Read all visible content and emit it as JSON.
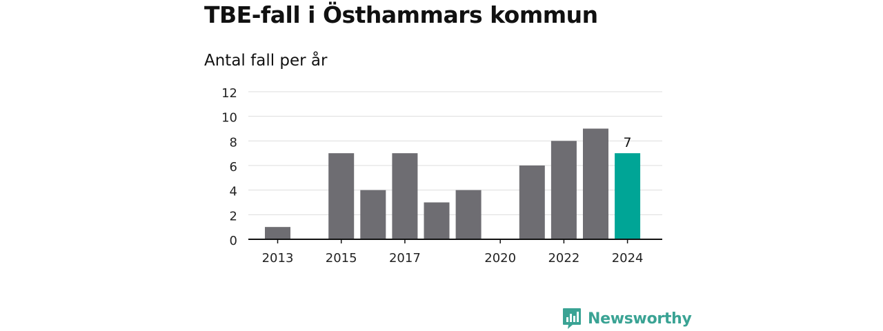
{
  "title": "TBE-fall i Östhammars kommun",
  "subtitle": "Antal fall per år",
  "brand": {
    "name": "Newsworthy",
    "icon": "newsworthy-logo-icon",
    "color": "#3aa394"
  },
  "colors": {
    "bar": "#6e6d72",
    "highlight": "#00a596",
    "grid": "#dddddd",
    "axis": "#111111"
  },
  "chart_data": {
    "type": "bar",
    "title": "TBE-fall i Östhammars kommun",
    "ylabel": "Antal fall per år",
    "categories": [
      "2013",
      "2014",
      "2015",
      "2016",
      "2017",
      "2018",
      "2019",
      "2020",
      "2021",
      "2022",
      "2023",
      "2024"
    ],
    "values": [
      1,
      0,
      7,
      4,
      7,
      3,
      4,
      0,
      6,
      8,
      9,
      7
    ],
    "x_tick_labels": [
      "2013",
      "",
      "2015",
      "",
      "2017",
      "",
      "",
      "2020",
      "",
      "2022",
      "",
      "2024"
    ],
    "y_ticks": [
      0,
      2,
      4,
      6,
      8,
      10,
      12
    ],
    "ylim": [
      0,
      12
    ],
    "grid": true,
    "highlight_index": 11,
    "data_labels": [
      {
        "index": 11,
        "text": "7"
      }
    ]
  }
}
